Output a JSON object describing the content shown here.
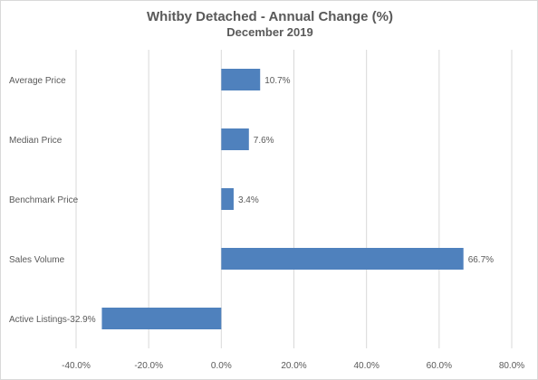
{
  "chart_data": {
    "type": "bar",
    "orientation": "horizontal",
    "title": "Whitby Detached - Annual Change (%)",
    "subtitle": "December 2019",
    "categories": [
      "Average Price",
      "Median Price",
      "Benchmark Price",
      "Sales Volume",
      "Active Listings"
    ],
    "values": [
      10.7,
      7.6,
      3.4,
      66.7,
      -32.9
    ],
    "data_labels": [
      "10.7%",
      "7.6%",
      "3.4%",
      "66.7%",
      "-32.9%"
    ],
    "xlim": [
      -40,
      80
    ],
    "x_ticks": [
      -40,
      -20,
      0,
      20,
      40,
      60,
      80
    ],
    "x_tick_labels": [
      "-40.0%",
      "-20.0%",
      "0.0%",
      "20.0%",
      "40.0%",
      "60.0%",
      "80.0%"
    ],
    "xlabel": "",
    "ylabel": "",
    "grid": "vertical",
    "legend": "none",
    "bar_color": "#4f81bd",
    "grid_color": "#d9d9d9",
    "text_color": "#595959"
  }
}
